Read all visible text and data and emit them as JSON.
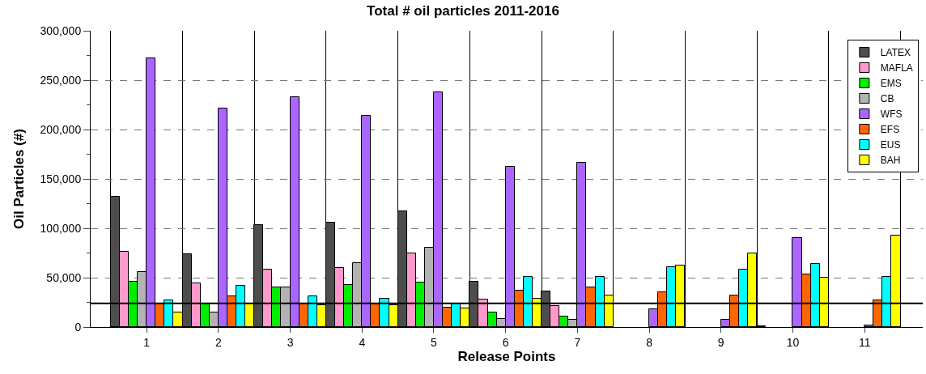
{
  "chart_data": {
    "type": "bar",
    "title": "Total # oil particles 2011-2016",
    "xlabel": "Release Points",
    "ylabel": "Oil Particles (#)",
    "categories": [
      "1",
      "2",
      "3",
      "4",
      "5",
      "6",
      "7",
      "8",
      "9",
      "10",
      "11"
    ],
    "series": [
      {
        "name": "LATEX",
        "color": "#4d4d4d",
        "values": [
          132000,
          74000,
          103000,
          106000,
          117000,
          46000,
          36000,
          null,
          null,
          1000,
          null
        ]
      },
      {
        "name": "MAFLA",
        "color": "#ff99cc",
        "values": [
          76000,
          44000,
          58000,
          60000,
          75000,
          28000,
          21000,
          null,
          null,
          null,
          null
        ]
      },
      {
        "name": "EMS",
        "color": "#00ee00",
        "values": [
          46000,
          24000,
          40000,
          43000,
          45000,
          15000,
          11000,
          null,
          null,
          null,
          null
        ]
      },
      {
        "name": "CB",
        "color": "#b3b3b3",
        "values": [
          56000,
          15000,
          40000,
          65000,
          80000,
          8000,
          7000,
          null,
          null,
          null,
          null
        ]
      },
      {
        "name": "WFS",
        "color": "#aa66ff",
        "values": [
          272000,
          221000,
          233000,
          214000,
          238000,
          162000,
          166000,
          18000,
          7000,
          90000,
          2000
        ]
      },
      {
        "name": "EFS",
        "color": "#ff6600",
        "values": [
          24000,
          31000,
          24000,
          23000,
          20000,
          37000,
          40000,
          35000,
          32000,
          53000,
          27000
        ]
      },
      {
        "name": "EUS",
        "color": "#00ffff",
        "values": [
          27000,
          42000,
          31000,
          29000,
          24000,
          51000,
          51000,
          61000,
          58000,
          64000,
          51000
        ]
      },
      {
        "name": "BAH",
        "color": "#ffff00",
        "values": [
          15000,
          24000,
          22000,
          22000,
          19000,
          29000,
          32000,
          62000,
          75000,
          50000,
          93000
        ]
      }
    ],
    "ylim": [
      0,
      300000
    ],
    "yticks": [
      {
        "value": 0,
        "label": "0"
      },
      {
        "value": 50000,
        "label": "50,000"
      },
      {
        "value": 100000,
        "label": "100,000"
      },
      {
        "value": 150000,
        "label": "150,000"
      },
      {
        "value": 200000,
        "label": "200,000"
      },
      {
        "value": 250000,
        "label": "250,000"
      },
      {
        "value": 300000,
        "label": "300,000"
      }
    ],
    "ref_lines": [
      {
        "axis": "y",
        "value": 24000,
        "color": "#000000",
        "line_style": "solid"
      }
    ],
    "grid": true,
    "legend": "top right"
  }
}
